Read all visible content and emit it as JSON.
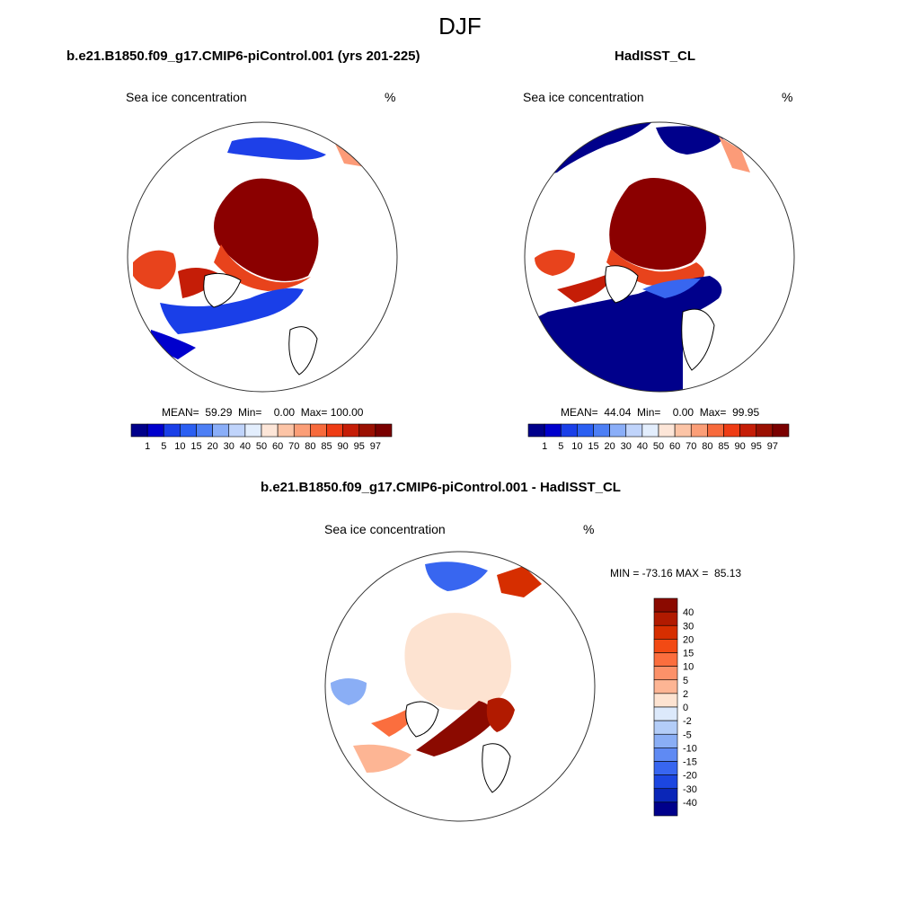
{
  "figure_title": "DJF",
  "chart_data": [
    {
      "type": "heatmap",
      "projection": "north polar stereographic",
      "title": "b.e21.B1850.f09_g17.CMIP6-piControl.001 (yrs 201-225)",
      "left_label": "Sea ice concentration",
      "units": "%",
      "stats": {
        "mean": "59.29",
        "min": "0.00",
        "max": "100.00"
      },
      "stats_text": "MEAN=  59.29  Min=    0.00  Max= 100.00",
      "colorbar": {
        "orientation": "horizontal",
        "levels": [
          "1",
          "5",
          "10",
          "15",
          "20",
          "30",
          "40",
          "50",
          "60",
          "70",
          "80",
          "85",
          "90",
          "95",
          "97"
        ],
        "colors": [
          "#00008b",
          "#0000cd",
          "#1a3fe8",
          "#2b5ff2",
          "#4d7ff5",
          "#8aaef8",
          "#c0d4fb",
          "#e3eefd",
          "#fde6d8",
          "#fcc4a6",
          "#fb9e77",
          "#f76a3c",
          "#ee3c15",
          "#c51d07",
          "#9a1002",
          "#7a0000"
        ]
      }
    },
    {
      "type": "heatmap",
      "projection": "north polar stereographic",
      "title": "HadISST_CL",
      "left_label": "Sea ice concentration",
      "units": "%",
      "stats": {
        "mean": "44.04",
        "min": "0.00",
        "max": "99.95"
      },
      "stats_text": "MEAN=  44.04  Min=    0.00  Max=  99.95",
      "colorbar": {
        "orientation": "horizontal",
        "levels": [
          "1",
          "5",
          "10",
          "15",
          "20",
          "30",
          "40",
          "50",
          "60",
          "70",
          "80",
          "85",
          "90",
          "95",
          "97"
        ],
        "colors": [
          "#00008b",
          "#0000cd",
          "#1a3fe8",
          "#2b5ff2",
          "#4d7ff5",
          "#8aaef8",
          "#c0d4fb",
          "#e3eefd",
          "#fde6d8",
          "#fcc4a6",
          "#fb9e77",
          "#f76a3c",
          "#ee3c15",
          "#c51d07",
          "#9a1002",
          "#7a0000"
        ]
      }
    },
    {
      "type": "heatmap",
      "projection": "north polar stereographic",
      "title": "b.e21.B1850.f09_g17.CMIP6-piControl.001 - HadISST_CL",
      "left_label": "Sea ice concentration",
      "units": "%",
      "stats": {
        "min": "-73.16",
        "max": "85.13"
      },
      "stats_text": "MIN = -73.16 MAX =  85.13",
      "colorbar": {
        "orientation": "vertical",
        "levels": [
          "40",
          "30",
          "20",
          "15",
          "10",
          "5",
          "2",
          "0",
          "-2",
          "-5",
          "-10",
          "-15",
          "-20",
          "-30",
          "-40"
        ],
        "colors": [
          "#8b0a00",
          "#b11a00",
          "#d62e00",
          "#f24a14",
          "#fb6e3e",
          "#fc9169",
          "#fdb594",
          "#fde3d1",
          "#dce9fb",
          "#b3cdf8",
          "#8aaef5",
          "#5f8af3",
          "#3866f0",
          "#1c46e0",
          "#0a26b8",
          "#00008b"
        ]
      }
    }
  ]
}
